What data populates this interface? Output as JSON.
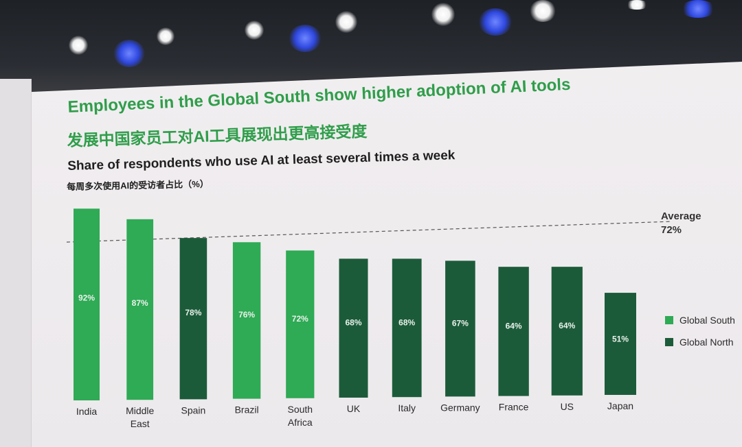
{
  "slide": {
    "title": "Employees in the Global South show higher adoption of AI tools",
    "title_zh": "发展中国家员工对AI工具展现出更高接受度",
    "subtitle": "Share of respondents who use AI at least several times a week",
    "subtitle_zh": "每周多次使用AI的受访者占比（%）"
  },
  "colors": {
    "global_south": "#2faa55",
    "global_north": "#1c5b3a",
    "title_green": "#2f9e4a"
  },
  "chart_data": {
    "type": "bar",
    "title": "Share of respondents who use AI at least several times a week",
    "categories": [
      [
        "India"
      ],
      [
        "Middle",
        "East"
      ],
      [
        "Spain"
      ],
      [
        "Brazil"
      ],
      [
        "South",
        "Africa"
      ],
      [
        "UK"
      ],
      [
        "Italy"
      ],
      [
        "Germany"
      ],
      [
        "France"
      ],
      [
        "US"
      ],
      [
        "Japan"
      ]
    ],
    "values": [
      92,
      87,
      78,
      76,
      72,
      68,
      68,
      67,
      64,
      64,
      51
    ],
    "value_labels": [
      "92%",
      "87%",
      "78%",
      "76%",
      "72%",
      "68%",
      "68%",
      "67%",
      "64%",
      "64%",
      "51%"
    ],
    "groups": [
      "Global South",
      "Global South",
      "Global North",
      "Global South",
      "Global South",
      "Global North",
      "Global North",
      "Global North",
      "Global North",
      "Global North",
      "Global North"
    ],
    "average": {
      "value": 72,
      "label": [
        "Average",
        "72%"
      ]
    },
    "legend": {
      "placement": "right",
      "entries": [
        {
          "name": "Global South",
          "color": "#2faa55"
        },
        {
          "name": "Global North",
          "color": "#1c5b3a"
        }
      ]
    },
    "ylim": [
      0,
      100
    ],
    "grid": false
  }
}
